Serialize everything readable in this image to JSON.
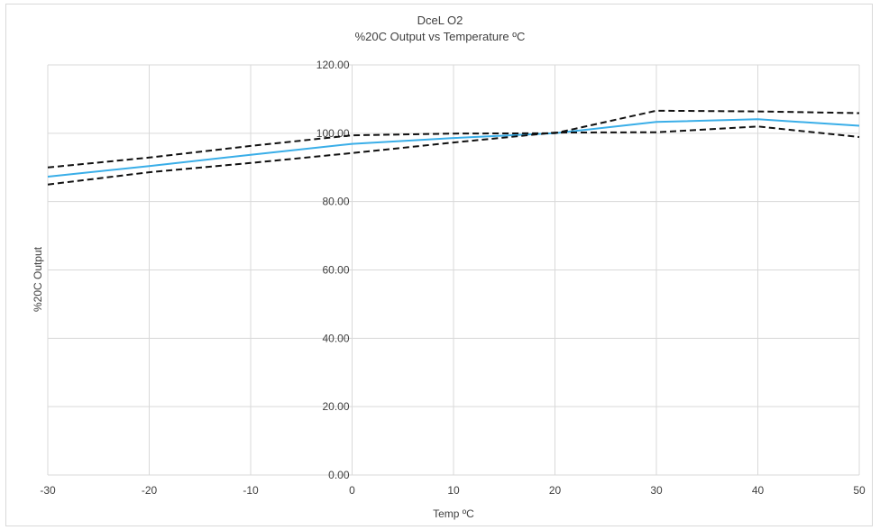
{
  "chart_data": {
    "type": "line",
    "title": "DceL O2",
    "subtitle": "%20C Output vs Temperature ºC",
    "xlabel": "Temp ºC",
    "ylabel": "%20C Output",
    "xlim": [
      -30,
      50
    ],
    "ylim": [
      0,
      120
    ],
    "x_ticks": [
      "-30",
      "-20",
      "-10",
      "0",
      "10",
      "20",
      "30",
      "40",
      "50"
    ],
    "y_ticks": [
      "0.00",
      "20.00",
      "40.00",
      "60.00",
      "80.00",
      "100.00",
      "120.00"
    ],
    "grid": true,
    "legend": "none",
    "series": [
      {
        "style": "solid",
        "color": "#3aaee8",
        "x": [
          -30,
          -20,
          -10,
          0,
          10,
          20,
          30,
          40,
          50
        ],
        "y": [
          87.3,
          90.4,
          93.7,
          96.9,
          98.6,
          100.0,
          103.3,
          104.1,
          102.2
        ]
      },
      {
        "style": "dashed",
        "color": "#111111",
        "x": [
          -30,
          -20,
          -10,
          0,
          10,
          20,
          30,
          40,
          50
        ],
        "y": [
          90.0,
          92.9,
          96.3,
          99.4,
          99.9,
          100.0,
          106.6,
          106.4,
          105.9
        ]
      },
      {
        "style": "dashed",
        "color": "#111111",
        "x": [
          -30,
          -20,
          -10,
          0,
          10,
          20,
          30,
          40,
          50
        ],
        "y": [
          85.0,
          88.6,
          91.3,
          94.2,
          97.3,
          100.2,
          100.3,
          102.0,
          98.9
        ]
      }
    ]
  }
}
